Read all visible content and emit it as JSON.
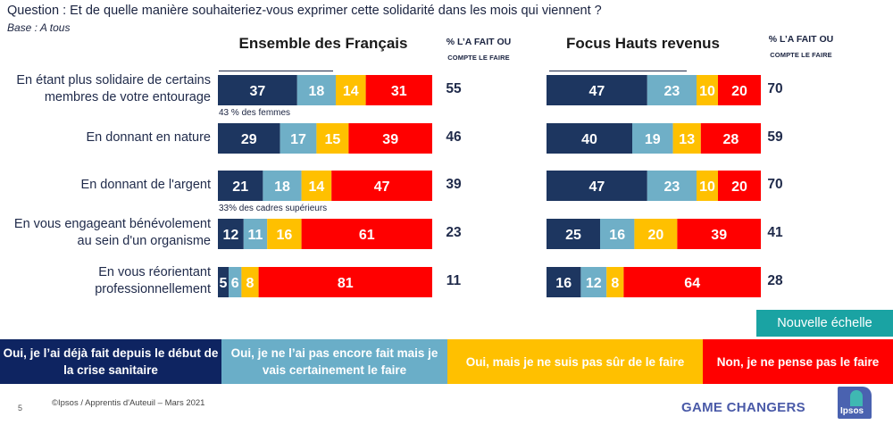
{
  "header": {
    "question": "Question : Et de quelle manière souhaiteriez-vous exprimer cette solidarité dans les mois qui viennent ?",
    "base": "Base : A tous"
  },
  "panels": {
    "left_title": "Ensemble des Français",
    "right_title": "Focus Hauts revenus",
    "pct_header_line1": "% L’A FAIT OU",
    "pct_header_line2": "COMPTE LE FAIRE"
  },
  "notes": {
    "row0": "43 % des femmes",
    "row2": "33% des cadres supérieurs"
  },
  "badge": {
    "label": "Nouvelle échelle",
    "color": "#1aa3a3"
  },
  "legend": [
    {
      "label": "Oui, je l’ai déjà fait depuis le début de la crise sanitaire",
      "color": "#0e2461"
    },
    {
      "label": "Oui, je ne l’ai pas encore fait mais je vais certainement le faire",
      "color": "#6aaec8"
    },
    {
      "label": "Oui, mais je ne suis pas sûr de le faire",
      "color": "#ffc000"
    },
    {
      "label": "Non, je ne pense pas le faire",
      "color": "#ff0000"
    }
  ],
  "footer": {
    "page_number": "5",
    "copyright": "©Ipsos / Apprentis d'Auteuil – Mars 2021",
    "tagline": "GAME CHANGERS",
    "logo_text": "Ipsos"
  },
  "chart_data": {
    "type": "bar",
    "orientation": "horizontal",
    "stacked": true,
    "normalized_to": 100,
    "title": "Et de quelle manière souhaiteriez-vous exprimer cette solidarité dans les mois qui viennent ?",
    "categories": [
      "En étant plus solidaire de certains membres de votre entourage",
      "En donnant en nature",
      "En donnant de l'argent",
      "En vous engageant bénévolement au sein d'un organisme",
      "En vous réorientant professionnellement"
    ],
    "category_lines": [
      [
        "En étant plus solidaire de certains",
        "membres de votre entourage"
      ],
      [
        "En donnant en nature"
      ],
      [
        "En donnant de l'argent"
      ],
      [
        "En vous engageant bénévolement",
        "au sein d'un organisme"
      ],
      [
        "En vous réorientant",
        "professionnellement"
      ]
    ],
    "series_names": [
      "Oui, je l’ai déjà fait depuis le début de la crise sanitaire",
      "Oui, je ne l’ai pas encore fait mais je vais certainement le faire",
      "Oui, mais je ne suis pas sûr de le faire",
      "Non, je ne pense pas le faire"
    ],
    "series_colors": [
      "#1d3660",
      "#6fafc7",
      "#ffc000",
      "#ff0000"
    ],
    "groups": [
      {
        "name": "Ensemble des Français",
        "values": [
          [
            37,
            18,
            14,
            31
          ],
          [
            29,
            17,
            15,
            39
          ],
          [
            21,
            18,
            14,
            47
          ],
          [
            12,
            11,
            16,
            61
          ],
          [
            5,
            6,
            8,
            81
          ]
        ],
        "totals_label": "% L’A FAIT OU COMPTE LE FAIRE",
        "totals": [
          55,
          46,
          39,
          23,
          11
        ]
      },
      {
        "name": "Focus Hauts revenus",
        "values": [
          [
            47,
            23,
            10,
            20
          ],
          [
            40,
            19,
            13,
            28
          ],
          [
            47,
            23,
            10,
            20
          ],
          [
            25,
            16,
            20,
            39
          ],
          [
            16,
            12,
            8,
            64
          ]
        ],
        "totals_label": "% L’A FAIT OU COMPTE LE FAIRE",
        "totals": [
          70,
          59,
          70,
          41,
          28
        ]
      }
    ],
    "annotations": [
      {
        "group": "Ensemble des Français",
        "category_index": 0,
        "text": "43 % des femmes"
      },
      {
        "group": "Ensemble des Français",
        "category_index": 2,
        "text": "33% des cadres supérieurs"
      }
    ],
    "xlim": [
      0,
      100
    ],
    "grid": false,
    "legend_position": "bottom"
  }
}
